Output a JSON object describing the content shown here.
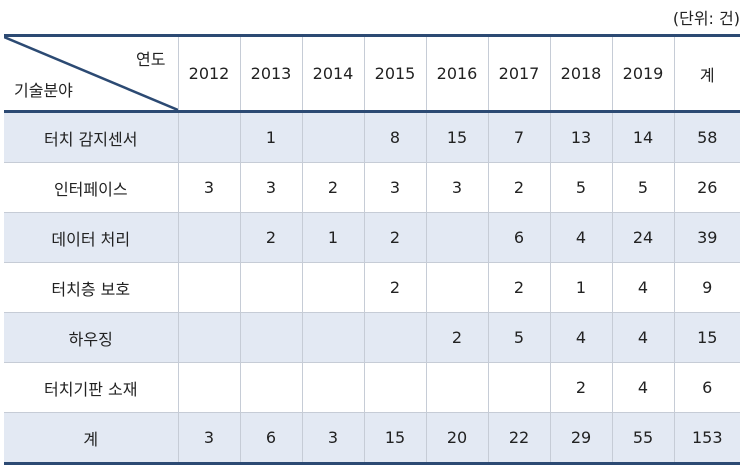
{
  "unit_note": "(단위: 건)",
  "header": {
    "corner_year": "연도",
    "corner_field": "기술분야",
    "years": [
      "2012",
      "2013",
      "2014",
      "2015",
      "2016",
      "2017",
      "2018",
      "2019"
    ],
    "total": "계"
  },
  "rows": [
    {
      "label": "터치 감지센서",
      "cells": [
        "",
        "1",
        "",
        "8",
        "15",
        "7",
        "13",
        "14"
      ],
      "total": "58"
    },
    {
      "label": "인터페이스",
      "cells": [
        "3",
        "3",
        "2",
        "3",
        "3",
        "2",
        "5",
        "5"
      ],
      "total": "26"
    },
    {
      "label": "데이터 처리",
      "cells": [
        "",
        "2",
        "1",
        "2",
        "",
        "6",
        "4",
        "24"
      ],
      "total": "39"
    },
    {
      "label": "터치층 보호",
      "cells": [
        "",
        "",
        "",
        "2",
        "",
        "2",
        "1",
        "4"
      ],
      "total": "9"
    },
    {
      "label": "하우징",
      "cells": [
        "",
        "",
        "",
        "",
        "2",
        "5",
        "4",
        "4"
      ],
      "total": "15"
    },
    {
      "label": "터치기판 소재",
      "cells": [
        "",
        "",
        "",
        "",
        "",
        "",
        "2",
        "4"
      ],
      "total": "6"
    },
    {
      "label": "계",
      "cells": [
        "3",
        "6",
        "3",
        "15",
        "20",
        "22",
        "29",
        "55"
      ],
      "total": "153"
    }
  ]
}
